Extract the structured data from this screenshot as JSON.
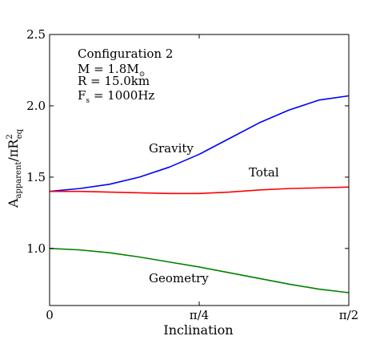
{
  "chart_data": {
    "type": "line",
    "title": "",
    "xlabel": "Inclination",
    "ylabel": "A_apparent/πR_eq^2",
    "ylabel_parts": {
      "main": "A",
      "sub": "apparent",
      "mid": "/πR",
      "sup": "2",
      "sub2": "eq"
    },
    "xlim": [
      0,
      1.5708
    ],
    "ylim": [
      0.6,
      2.5
    ],
    "xticks": [
      {
        "value": 0,
        "label": "0"
      },
      {
        "value": 0.7854,
        "label": "π/4"
      },
      {
        "value": 1.5708,
        "label": "π/2"
      }
    ],
    "yticks": [
      {
        "value": 1.0,
        "label": "1.0"
      },
      {
        "value": 1.5,
        "label": "1.5"
      },
      {
        "value": 2.0,
        "label": "2.0"
      },
      {
        "value": 2.5,
        "label": "2.5"
      }
    ],
    "grid": false,
    "annotation": {
      "line1": "Configuration 2",
      "line2_main": "M = 1.8M",
      "line2_sub": "⊙",
      "line3": "R = 15.0km",
      "line4_main": "F",
      "line4_sub": "s",
      "line4_rest": " = 1000Hz"
    },
    "series": [
      {
        "name": "Gravity",
        "color": "#0000ff",
        "x": [
          0,
          0.1571,
          0.3142,
          0.4712,
          0.6283,
          0.7854,
          0.9425,
          1.0996,
          1.2566,
          1.4137,
          1.5708
        ],
        "y": [
          1.4,
          1.42,
          1.45,
          1.5,
          1.57,
          1.66,
          1.77,
          1.88,
          1.97,
          2.04,
          2.07
        ]
      },
      {
        "name": "Total",
        "color": "#ff0000",
        "x": [
          0,
          0.1571,
          0.3142,
          0.4712,
          0.6283,
          0.7854,
          0.9425,
          1.0996,
          1.2566,
          1.4137,
          1.5708
        ],
        "y": [
          1.4,
          1.4,
          1.395,
          1.39,
          1.385,
          1.385,
          1.395,
          1.41,
          1.42,
          1.425,
          1.43
        ]
      },
      {
        "name": "Geometry",
        "color": "#008000",
        "x": [
          0,
          0.1571,
          0.3142,
          0.4712,
          0.6283,
          0.7854,
          0.9425,
          1.0996,
          1.2566,
          1.4137,
          1.5708
        ],
        "y": [
          1.0,
          0.99,
          0.97,
          0.94,
          0.905,
          0.87,
          0.83,
          0.79,
          0.75,
          0.715,
          0.69
        ]
      }
    ]
  }
}
